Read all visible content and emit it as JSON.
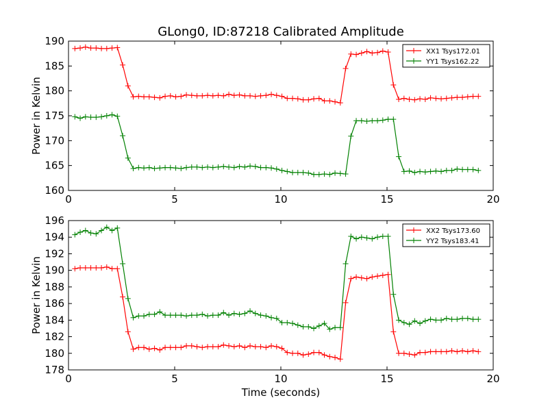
{
  "figure": {
    "title": "GLong0, ID:87218 Calibrated Amplitude",
    "xlabel": "Time (seconds)"
  },
  "colors": {
    "red": "#ff0000",
    "green": "#008000"
  },
  "chart_data": [
    {
      "type": "line",
      "title": "GLong0, ID:87218 Calibrated Amplitude",
      "xlabel": "",
      "ylabel": "Power in Kelvin",
      "xlim": [
        0,
        20
      ],
      "ylim": [
        160,
        190
      ],
      "xticks": [
        0,
        5,
        10,
        15,
        20
      ],
      "yticks": [
        160,
        165,
        170,
        175,
        180,
        185,
        190
      ],
      "grid": false,
      "legend_position": "top-right",
      "marker": "+",
      "series": [
        {
          "name": "XX1 Tsys172.01",
          "color": "#ff0000",
          "x": [
            0.3,
            0.55,
            0.8,
            1.05,
            1.3,
            1.55,
            1.8,
            2.05,
            2.3,
            2.55,
            2.8,
            3.05,
            3.3,
            3.55,
            3.8,
            4.05,
            4.3,
            4.55,
            4.8,
            5.05,
            5.3,
            5.55,
            5.8,
            6.05,
            6.3,
            6.55,
            6.8,
            7.05,
            7.3,
            7.55,
            7.8,
            8.05,
            8.3,
            8.55,
            8.8,
            9.05,
            9.3,
            9.55,
            9.8,
            10.05,
            10.3,
            10.55,
            10.8,
            11.05,
            11.3,
            11.55,
            11.8,
            12.05,
            12.3,
            12.55,
            12.8,
            13.05,
            13.3,
            13.55,
            13.8,
            14.05,
            14.3,
            14.55,
            14.8,
            15.05,
            15.3,
            15.55,
            15.8,
            16.05,
            16.3,
            16.55,
            16.8,
            17.05,
            17.3,
            17.55,
            17.8,
            18.05,
            18.3,
            18.55,
            18.8,
            19.05,
            19.3
          ],
          "y": [
            188.5,
            188.6,
            188.8,
            188.6,
            188.6,
            188.5,
            188.5,
            188.6,
            188.7,
            185.2,
            181.0,
            178.8,
            178.9,
            178.8,
            178.8,
            178.7,
            178.6,
            178.9,
            179.0,
            178.8,
            178.9,
            179.2,
            179.1,
            179.0,
            179.0,
            179.1,
            179.0,
            179.1,
            179.0,
            179.3,
            179.1,
            179.2,
            179.0,
            179.0,
            178.9,
            179.0,
            179.1,
            179.3,
            179.1,
            178.9,
            178.5,
            178.5,
            178.4,
            178.2,
            178.2,
            178.4,
            178.5,
            178.0,
            178.0,
            177.8,
            177.6,
            184.5,
            187.4,
            187.3,
            187.6,
            187.9,
            187.6,
            187.7,
            188.0,
            187.8,
            181.2,
            178.3,
            178.5,
            178.3,
            178.2,
            178.4,
            178.3,
            178.6,
            178.5,
            178.4,
            178.5,
            178.6,
            178.7,
            178.7,
            178.8,
            178.9,
            178.9
          ]
        },
        {
          "name": "YY1 Tsys162.22",
          "color": "#008000",
          "x": [
            0.3,
            0.55,
            0.8,
            1.05,
            1.3,
            1.55,
            1.8,
            2.05,
            2.3,
            2.55,
            2.8,
            3.05,
            3.3,
            3.55,
            3.8,
            4.05,
            4.3,
            4.55,
            4.8,
            5.05,
            5.3,
            5.55,
            5.8,
            6.05,
            6.3,
            6.55,
            6.8,
            7.05,
            7.3,
            7.55,
            7.8,
            8.05,
            8.3,
            8.55,
            8.8,
            9.05,
            9.3,
            9.55,
            9.8,
            10.05,
            10.3,
            10.55,
            10.8,
            11.05,
            11.3,
            11.55,
            11.8,
            12.05,
            12.3,
            12.55,
            12.8,
            13.05,
            13.3,
            13.55,
            13.8,
            14.05,
            14.3,
            14.55,
            14.8,
            15.05,
            15.3,
            15.55,
            15.8,
            16.05,
            16.3,
            16.55,
            16.8,
            17.05,
            17.3,
            17.55,
            17.8,
            18.05,
            18.3,
            18.55,
            18.8,
            19.05,
            19.3
          ],
          "y": [
            174.8,
            174.5,
            174.8,
            174.7,
            174.7,
            174.8,
            175.0,
            175.2,
            174.9,
            171.0,
            166.5,
            164.4,
            164.6,
            164.5,
            164.6,
            164.4,
            164.5,
            164.6,
            164.6,
            164.5,
            164.4,
            164.6,
            164.7,
            164.7,
            164.6,
            164.7,
            164.6,
            164.7,
            164.8,
            164.7,
            164.6,
            164.8,
            164.7,
            164.9,
            164.8,
            164.6,
            164.6,
            164.5,
            164.3,
            164.0,
            163.8,
            163.6,
            163.6,
            163.6,
            163.5,
            163.2,
            163.2,
            163.3,
            163.2,
            163.5,
            163.4,
            163.3,
            170.9,
            174.0,
            174.0,
            173.9,
            174.0,
            174.0,
            174.1,
            174.3,
            174.3,
            166.8,
            163.8,
            163.9,
            163.6,
            163.8,
            163.7,
            163.8,
            163.9,
            163.8,
            164.0,
            164.0,
            164.3,
            164.2,
            164.2,
            164.2,
            164.0
          ]
        }
      ]
    },
    {
      "type": "line",
      "title": "",
      "xlabel": "Time (seconds)",
      "ylabel": "Power in Kelvin",
      "xlim": [
        0,
        20
      ],
      "ylim": [
        178,
        196
      ],
      "xticks": [
        0,
        5,
        10,
        15,
        20
      ],
      "yticks": [
        178,
        180,
        182,
        184,
        186,
        188,
        190,
        192,
        194,
        196
      ],
      "grid": false,
      "legend_position": "top-right",
      "marker": "+",
      "series": [
        {
          "name": "XX2 Tsys173.60",
          "color": "#ff0000",
          "x": [
            0.3,
            0.55,
            0.8,
            1.05,
            1.3,
            1.55,
            1.8,
            2.05,
            2.3,
            2.55,
            2.8,
            3.05,
            3.3,
            3.55,
            3.8,
            4.05,
            4.3,
            4.55,
            4.8,
            5.05,
            5.3,
            5.55,
            5.8,
            6.05,
            6.3,
            6.55,
            6.8,
            7.05,
            7.3,
            7.55,
            7.8,
            8.05,
            8.3,
            8.55,
            8.8,
            9.05,
            9.3,
            9.55,
            9.8,
            10.05,
            10.3,
            10.55,
            10.8,
            11.05,
            11.3,
            11.55,
            11.8,
            12.05,
            12.3,
            12.55,
            12.8,
            13.05,
            13.3,
            13.55,
            13.8,
            14.05,
            14.3,
            14.55,
            14.8,
            15.05,
            15.3,
            15.55,
            15.8,
            16.05,
            16.3,
            16.55,
            16.8,
            17.05,
            17.3,
            17.55,
            17.8,
            18.05,
            18.3,
            18.55,
            18.8,
            19.05,
            19.3
          ],
          "y": [
            190.2,
            190.3,
            190.3,
            190.3,
            190.3,
            190.3,
            190.4,
            190.2,
            190.2,
            186.8,
            182.6,
            180.5,
            180.7,
            180.7,
            180.5,
            180.6,
            180.4,
            180.7,
            180.7,
            180.7,
            180.7,
            180.9,
            180.9,
            180.8,
            180.7,
            180.8,
            180.8,
            180.8,
            181.0,
            180.9,
            180.8,
            180.9,
            180.7,
            180.9,
            180.8,
            180.8,
            180.7,
            180.9,
            180.8,
            180.6,
            180.1,
            180.0,
            180.0,
            179.8,
            179.9,
            180.1,
            180.1,
            179.8,
            179.6,
            179.5,
            179.3,
            186.1,
            189.0,
            189.2,
            189.1,
            189.0,
            189.2,
            189.3,
            189.4,
            189.5,
            182.6,
            180.0,
            180.0,
            179.9,
            179.8,
            180.1,
            180.1,
            180.2,
            180.2,
            180.2,
            180.2,
            180.3,
            180.2,
            180.3,
            180.2,
            180.3,
            180.2
          ]
        },
        {
          "name": "YY2 Tsys183.41",
          "color": "#008000",
          "x": [
            0.3,
            0.55,
            0.8,
            1.05,
            1.3,
            1.55,
            1.8,
            2.05,
            2.3,
            2.55,
            2.8,
            3.05,
            3.3,
            3.55,
            3.8,
            4.05,
            4.3,
            4.55,
            4.8,
            5.05,
            5.3,
            5.55,
            5.8,
            6.05,
            6.3,
            6.55,
            6.8,
            7.05,
            7.3,
            7.55,
            7.8,
            8.05,
            8.3,
            8.55,
            8.8,
            9.05,
            9.3,
            9.55,
            9.8,
            10.05,
            10.3,
            10.55,
            10.8,
            11.05,
            11.3,
            11.55,
            11.8,
            12.05,
            12.3,
            12.55,
            12.8,
            13.05,
            13.3,
            13.55,
            13.8,
            14.05,
            14.3,
            14.55,
            14.8,
            15.05,
            15.3,
            15.55,
            15.8,
            16.05,
            16.3,
            16.55,
            16.8,
            17.05,
            17.3,
            17.55,
            17.8,
            18.05,
            18.3,
            18.55,
            18.8,
            19.05,
            19.3
          ],
          "y": [
            194.3,
            194.6,
            194.8,
            194.5,
            194.4,
            194.8,
            195.2,
            194.8,
            195.1,
            190.8,
            186.6,
            184.3,
            184.5,
            184.5,
            184.7,
            184.7,
            185.0,
            184.6,
            184.6,
            184.6,
            184.6,
            184.5,
            184.6,
            184.6,
            184.7,
            184.5,
            184.6,
            184.6,
            184.9,
            184.6,
            184.8,
            184.7,
            184.8,
            185.1,
            184.8,
            184.6,
            184.5,
            184.3,
            184.2,
            183.7,
            183.7,
            183.6,
            183.4,
            183.2,
            183.2,
            183.0,
            183.3,
            183.6,
            182.9,
            183.1,
            183.1,
            190.8,
            194.1,
            193.8,
            194.0,
            193.9,
            193.8,
            194.0,
            194.1,
            194.1,
            187.1,
            184.0,
            183.7,
            183.5,
            183.9,
            183.6,
            183.9,
            184.1,
            184.0,
            184.0,
            184.2,
            184.1,
            184.1,
            184.2,
            184.2,
            184.1,
            184.1
          ]
        }
      ]
    }
  ]
}
